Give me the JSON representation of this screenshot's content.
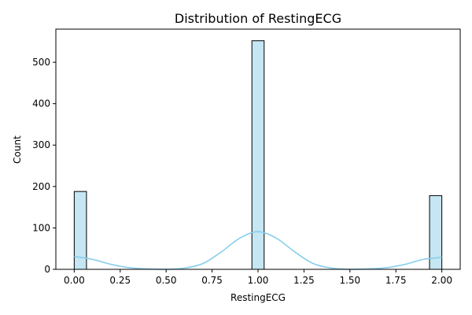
{
  "chart_data": {
    "type": "histogram",
    "title": "Distribution of RestingECG",
    "xlabel": "RestingECG",
    "ylabel": "Count",
    "xlim": [
      -0.1,
      2.1
    ],
    "ylim": [
      0,
      580
    ],
    "xticks": [
      0.0,
      0.25,
      0.5,
      0.75,
      1.0,
      1.25,
      1.5,
      1.75,
      2.0
    ],
    "xtick_labels": [
      "0.00",
      "0.25",
      "0.50",
      "0.75",
      "1.00",
      "1.25",
      "1.50",
      "1.75",
      "2.00"
    ],
    "yticks": [
      0,
      100,
      200,
      300,
      400,
      500
    ],
    "ytick_labels": [
      "0",
      "100",
      "200",
      "300",
      "400",
      "500"
    ],
    "bin_width": 0.0667,
    "bars": [
      {
        "x0": 0.0,
        "x1": 0.0667,
        "count": 188
      },
      {
        "x0": 0.9667,
        "x1": 1.0333,
        "count": 552
      },
      {
        "x0": 1.9333,
        "x1": 2.0,
        "count": 178
      }
    ],
    "kde": {
      "x": [
        0.0,
        0.1,
        0.2,
        0.3,
        0.4,
        0.5,
        0.6,
        0.7,
        0.8,
        0.9,
        1.0,
        1.1,
        1.2,
        1.3,
        1.4,
        1.5,
        1.6,
        1.7,
        1.8,
        1.9,
        2.0
      ],
      "y": [
        31,
        24,
        12,
        4,
        1,
        0,
        3,
        14,
        42,
        75,
        91,
        75,
        42,
        14,
        3,
        0,
        1,
        4,
        12,
        24,
        29
      ]
    },
    "colors": {
      "bar_fill": "#c5e6f2",
      "bar_edge": "#000000",
      "kde_line": "#87ceeb"
    },
    "grid": false,
    "legend": "none"
  }
}
